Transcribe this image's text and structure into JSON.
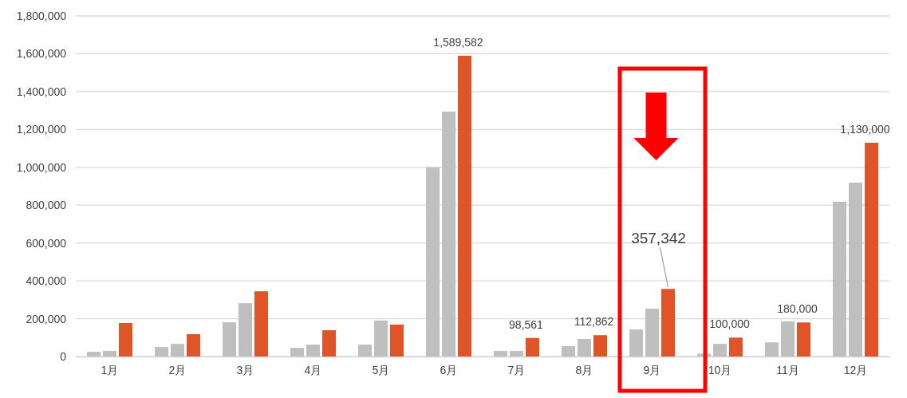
{
  "chart_data": {
    "type": "bar",
    "categories": [
      "1月",
      "2月",
      "3月",
      "4月",
      "5月",
      "6月",
      "7月",
      "8月",
      "9月",
      "10月",
      "11月",
      "12月"
    ],
    "series": [
      {
        "color": "#bfbfbf",
        "values": [
          25000,
          50000,
          181000,
          46000,
          63000,
          1000000,
          30000,
          55000,
          143000,
          15000,
          75000,
          818000
        ]
      },
      {
        "color": "#bfbfbf",
        "values": [
          30000,
          67000,
          282000,
          63000,
          190000,
          1295000,
          30000,
          93000,
          253000,
          67000,
          186000,
          919000
        ]
      },
      {
        "color": "#e05528",
        "values": [
          177000,
          118000,
          345000,
          139000,
          169000,
          1589582,
          98561,
          112862,
          357342,
          100000,
          180000,
          1130000
        ],
        "value_labels": [
          null,
          null,
          null,
          null,
          null,
          "1,589,582",
          "98,561",
          "112,862",
          "357,342",
          "100,000",
          "180,000",
          "1,130,000"
        ]
      }
    ],
    "ylim": [
      0,
      1800000
    ],
    "yticks": [
      {
        "value": 0,
        "label": "0"
      },
      {
        "value": 200000,
        "label": "200,000"
      },
      {
        "value": 400000,
        "label": "400,000"
      },
      {
        "value": 600000,
        "label": "600,000"
      },
      {
        "value": 800000,
        "label": "800,000"
      },
      {
        "value": 1000000,
        "label": "1,000,000"
      },
      {
        "value": 1200000,
        "label": "1,200,000"
      },
      {
        "value": 1400000,
        "label": "1,400,000"
      },
      {
        "value": 1600000,
        "label": "1,600,000"
      },
      {
        "value": 1800000,
        "label": "1,800,000"
      }
    ],
    "grid": "y"
  }
}
